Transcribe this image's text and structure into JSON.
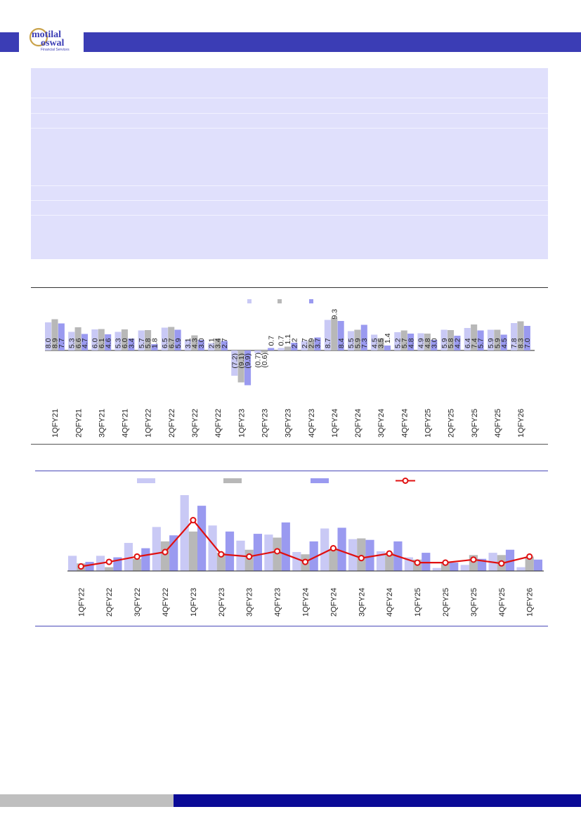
{
  "brand": {
    "name_line1": "motilal",
    "name_line2": "oswal",
    "tagline": "Financial Services",
    "primary_color": "#3b3db5",
    "accent_color": "#c9a24a"
  },
  "chart_data": [
    {
      "type": "bar",
      "categories": [
        "1QFY21",
        "2QFY21",
        "3QFY21",
        "4QFY21",
        "1QFY22",
        "2QFY22",
        "3QFY22",
        "4QFY22",
        "1QFY23",
        "2QFY23",
        "3QFY23",
        "4QFY23",
        "1QFY24",
        "2QFY24",
        "3QFY24",
        "4QFY24",
        "1QFY25",
        "2QFY25",
        "3QFY25",
        "4QFY25",
        "1QFY26"
      ],
      "series": [
        {
          "color": "#c9c9f5",
          "label_text": [
            "8.0",
            "5.3",
            "6.0",
            "5.3",
            "5.7",
            "6.5",
            "3.1",
            "2.1",
            "(7.2)",
            "(0.7)",
            "0.7",
            "2.7",
            "8.7",
            "5.5",
            "4.5",
            "5.2",
            "4.9",
            "5.9",
            "6.4",
            "5.9",
            "7.8"
          ],
          "values": [
            8.0,
            5.3,
            6.0,
            5.3,
            5.7,
            6.5,
            3.1,
            2.1,
            -7.2,
            -0.7,
            0.7,
            2.7,
            8.7,
            5.5,
            4.5,
            5.2,
            4.9,
            5.9,
            6.4,
            5.9,
            7.8
          ]
        },
        {
          "color": "#b8b8b8",
          "label_text": [
            "8.9",
            "6.6",
            "6.1",
            "6.0",
            "5.8",
            "6.7",
            "4.3",
            "3.4",
            "(9.1)",
            "(0.6)",
            "1.1",
            "2.9",
            "9.3",
            "5.9",
            "3.5",
            "5.7",
            "4.8",
            "5.8",
            "7.4",
            "5.9",
            "8.3"
          ],
          "values": [
            8.9,
            6.6,
            6.1,
            6.0,
            5.8,
            6.7,
            4.3,
            3.4,
            -9.1,
            -0.6,
            1.1,
            2.9,
            9.3,
            5.9,
            3.5,
            5.7,
            4.8,
            5.8,
            7.4,
            5.9,
            8.3
          ]
        },
        {
          "color": "#9a9af0",
          "label_text": [
            "7.7",
            "4.7",
            "4.6",
            "3.4",
            "1.8",
            "5.9",
            "3.0",
            "2.7",
            "(9.9)",
            "0.7",
            "2.2",
            "3.7",
            "8.4",
            "7.3",
            "1.4",
            "4.8",
            "3.0",
            "4.2",
            "5.7",
            "4.5",
            "7.0"
          ],
          "values": [
            7.7,
            4.7,
            4.6,
            3.4,
            1.8,
            5.9,
            3.0,
            2.7,
            -9.9,
            0.7,
            2.2,
            3.7,
            8.4,
            7.3,
            1.4,
            4.8,
            3.0,
            4.2,
            5.7,
            4.5,
            7.0
          ]
        }
      ],
      "legend_position": "top-center",
      "ylim": [
        -11,
        10
      ]
    },
    {
      "type": "bar",
      "categories": [
        "1QFY22",
        "2QFY22",
        "3QFY22",
        "4QFY22",
        "1QFY23",
        "2QFY23",
        "3QFY23",
        "4QFY23",
        "1QFY24",
        "2QFY24",
        "3QFY24",
        "4QFY24",
        "1QFY25",
        "2QFY25",
        "3QFY25",
        "4QFY25",
        "1QFY26"
      ],
      "series": [
        {
          "color": "#c9c9f5",
          "values": [
            2.0,
            2.0,
            3.7,
            5.8,
            10.0,
            6.0,
            4.0,
            4.8,
            2.5,
            5.6,
            4.2,
            2.6,
            1.8,
            0.4,
            0.8,
            2.4,
            0.5
          ]
        },
        {
          "color": "#b8b8b8",
          "values": [
            1.0,
            0.5,
            1.6,
            3.9,
            5.2,
            2.4,
            2.8,
            4.4,
            2.2,
            2.9,
            4.3,
            2.4,
            1.5,
            1.2,
            2.1,
            2.1,
            1.9
          ]
        },
        {
          "color": "#9a9af0",
          "values": [
            1.2,
            1.8,
            3.0,
            4.7,
            8.6,
            5.2,
            4.9,
            6.4,
            3.9,
            5.7,
            4.1,
            3.9,
            2.4,
            1.1,
            1.6,
            2.8,
            1.5
          ]
        },
        {
          "color": "#e01010",
          "type": "line",
          "marker": "circle",
          "values": [
            0.6,
            1.2,
            1.9,
            2.5,
            6.7,
            2.2,
            1.9,
            2.6,
            1.2,
            3.0,
            1.7,
            2.3,
            1.1,
            1.1,
            1.5,
            1.0,
            1.9
          ]
        }
      ],
      "legend_position": "top",
      "ylim": [
        0,
        10.5
      ]
    }
  ]
}
